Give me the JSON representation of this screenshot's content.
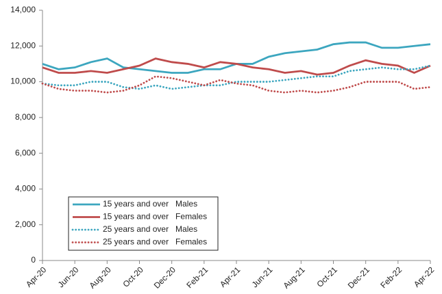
{
  "chart_data": {
    "type": "line",
    "categories": [
      "Apr-20",
      null,
      "Jun-20",
      null,
      "Aug-20",
      null,
      "Oct-20",
      null,
      "Dec-20",
      null,
      "Feb-21",
      null,
      "Apr-21",
      null,
      "Jun-21",
      null,
      "Aug-21",
      null,
      "Oct-21",
      null,
      "Dec-21",
      null,
      "Feb-22",
      null,
      "Apr-22"
    ],
    "series": [
      {
        "name": "15 years and over   Males",
        "color": "#3ca6bf",
        "style": "solid",
        "values": [
          11000,
          10700,
          10800,
          11100,
          11300,
          10800,
          10700,
          10600,
          10500,
          10500,
          10700,
          10700,
          11000,
          11000,
          11400,
          11600,
          11700,
          11800,
          12100,
          12200,
          12200,
          11900,
          11900,
          12000,
          12100
        ]
      },
      {
        "name": "15 years and over   Females",
        "color": "#bf4b4b",
        "style": "solid",
        "values": [
          10800,
          10500,
          10500,
          10600,
          10500,
          10700,
          10900,
          11300,
          11100,
          11000,
          10800,
          11100,
          11000,
          10800,
          10700,
          10500,
          10600,
          10400,
          10500,
          10900,
          11200,
          11000,
          10900,
          10500,
          10900
        ]
      },
      {
        "name": "25 years and over   Males",
        "color": "#3ca6bf",
        "style": "dotted",
        "values": [
          9900,
          9800,
          9800,
          10000,
          10000,
          9700,
          9600,
          9800,
          9600,
          9700,
          9800,
          9800,
          10000,
          10000,
          10000,
          10100,
          10200,
          10300,
          10300,
          10600,
          10700,
          10800,
          10700,
          10700,
          10900
        ]
      },
      {
        "name": "25 years and over   Females",
        "color": "#bf4b4b",
        "style": "dotted",
        "values": [
          9900,
          9600,
          9500,
          9500,
          9400,
          9500,
          9800,
          10300,
          10200,
          10000,
          9800,
          10100,
          9900,
          9800,
          9500,
          9400,
          9500,
          9400,
          9500,
          9700,
          10000,
          10000,
          10000,
          9600,
          9700
        ]
      }
    ],
    "ylim": [
      0,
      14000
    ],
    "yticks": [
      0,
      {
        "value": 2000,
        "label": "2,000"
      },
      {
        "value": 4000,
        "label": "4,000"
      },
      {
        "value": 6000,
        "label": "6,000"
      },
      {
        "value": 8000,
        "label": "8,000"
      },
      {
        "value": 10000,
        "label": "10,000"
      },
      {
        "value": 12000,
        "label": "12,000"
      },
      {
        "value": 14000,
        "label": "14,000"
      }
    ],
    "grid": false,
    "legend": "lower left"
  }
}
